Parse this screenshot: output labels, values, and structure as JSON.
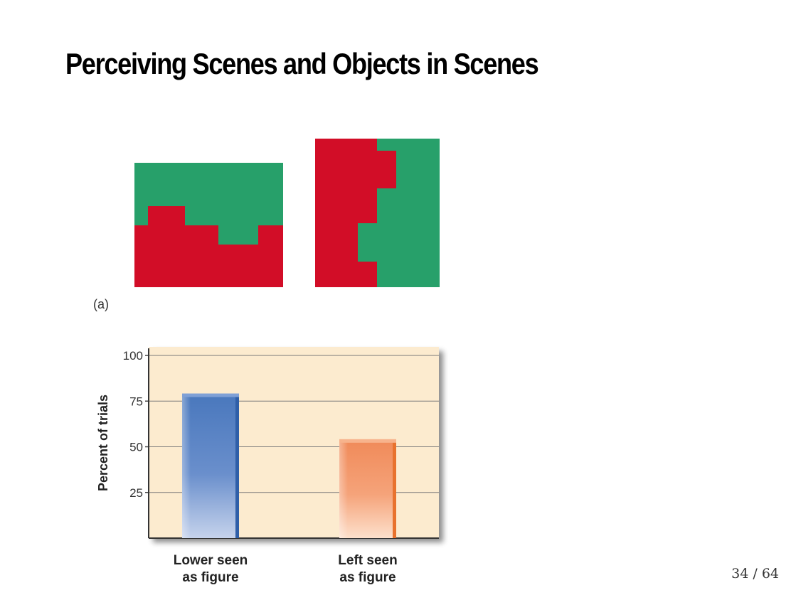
{
  "slide": {
    "title": "Perceiving Scenes and Objects in Scenes",
    "panel_label": "(a)",
    "page_number": "34 / 64"
  },
  "colors": {
    "red": "#d20d27",
    "green": "#27a06a",
    "chart_bg": "#fcebcf",
    "bar_blue": "#4a78bd",
    "bar_orange": "#f08b5a"
  },
  "chart_data": {
    "type": "bar",
    "categories": [
      [
        "Lower seen",
        "as figure"
      ],
      [
        "Left seen",
        "as figure"
      ]
    ],
    "values": [
      78,
      53
    ],
    "ylabel": "Percent of trials",
    "xlabel": "",
    "ylim": [
      0,
      100
    ],
    "yticks": [
      25,
      50,
      75,
      100
    ],
    "grid": true
  }
}
